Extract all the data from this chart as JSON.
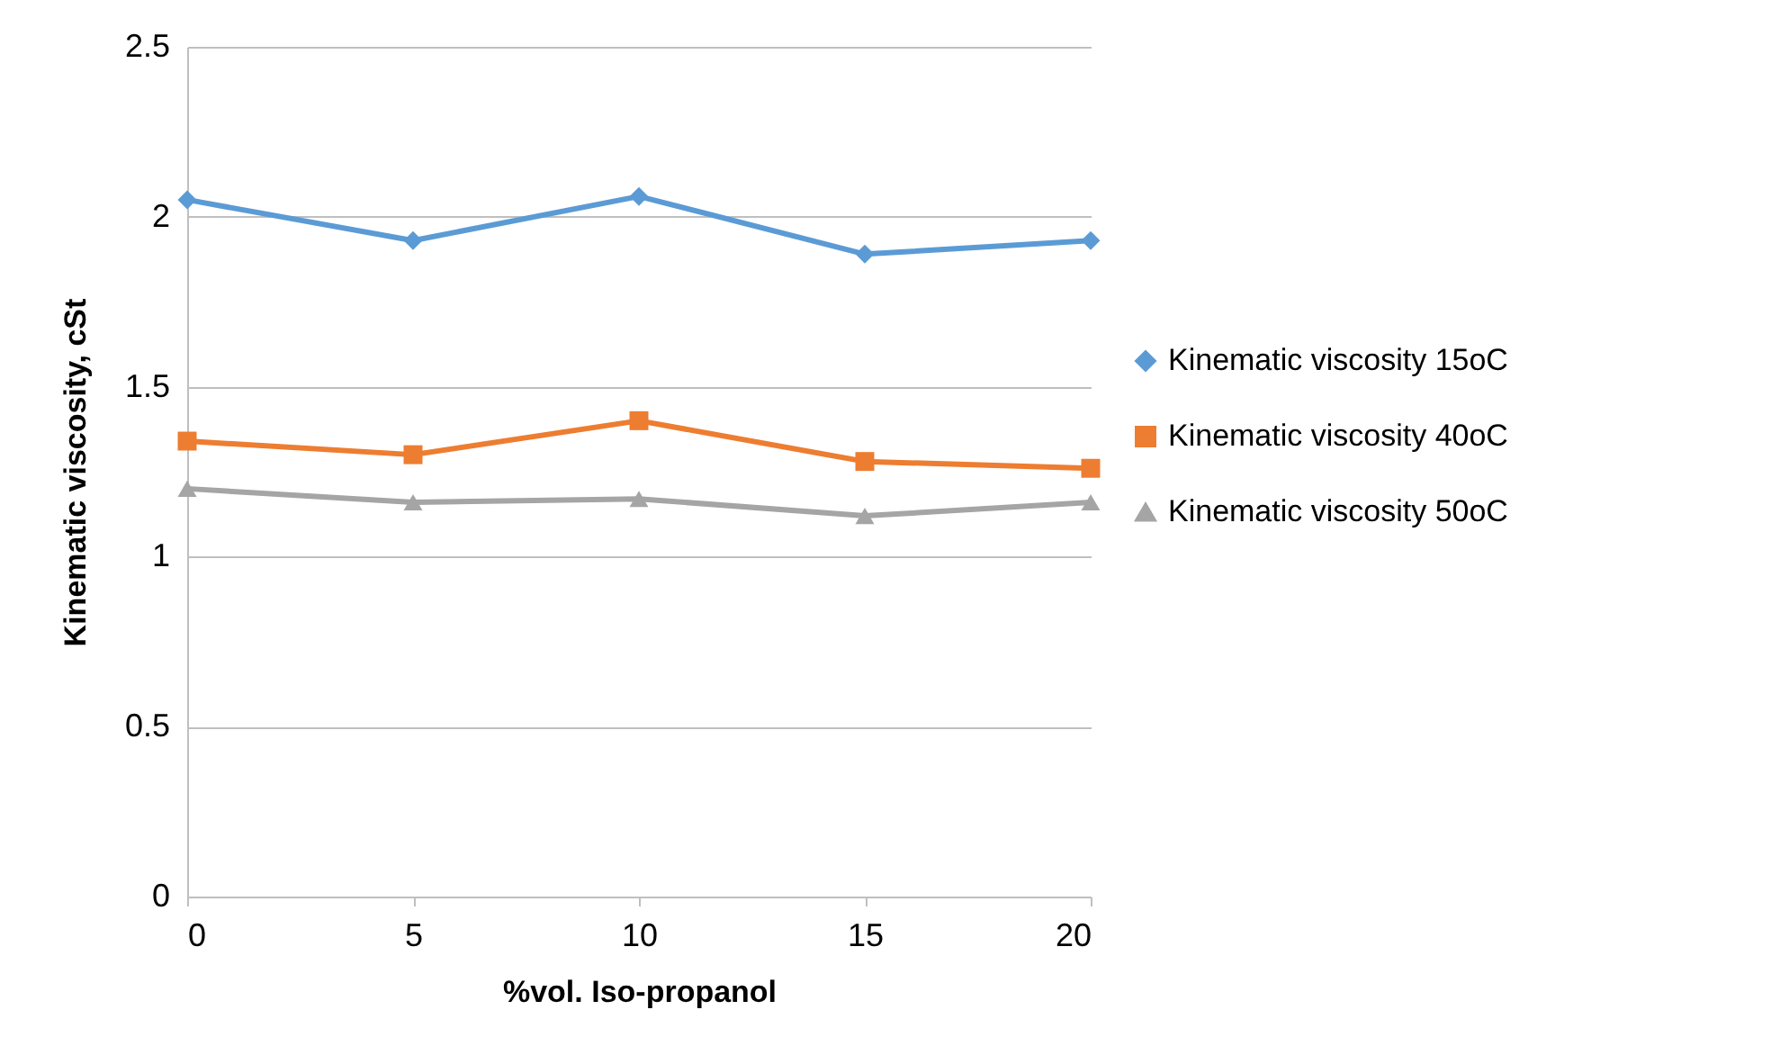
{
  "chart_data": {
    "type": "line",
    "xlabel": "%vol. Iso-propanol",
    "ylabel": "Kinematic viscosity, cSt",
    "x": [
      0,
      5,
      10,
      15,
      20
    ],
    "series": [
      {
        "name": "Kinematic viscosity 15oC",
        "color": "#5b9bd5",
        "marker": "diamond",
        "values": [
          2.05,
          1.93,
          2.06,
          1.89,
          1.93
        ]
      },
      {
        "name": "Kinematic viscosity 40oC",
        "color": "#ed7d31",
        "marker": "square",
        "values": [
          1.34,
          1.3,
          1.4,
          1.28,
          1.26
        ]
      },
      {
        "name": "Kinematic viscosity 50oC",
        "color": "#a5a5a5",
        "marker": "triangle",
        "values": [
          1.2,
          1.16,
          1.17,
          1.12,
          1.16
        ]
      }
    ],
    "xlim": [
      0,
      20
    ],
    "xticks": [
      0,
      5,
      10,
      15,
      20
    ],
    "ylim": [
      0,
      2.5
    ],
    "yticks": [
      0,
      0.5,
      1,
      1.5,
      2,
      2.5
    ],
    "grid": "y",
    "legend": "right",
    "line_style": "solid"
  }
}
